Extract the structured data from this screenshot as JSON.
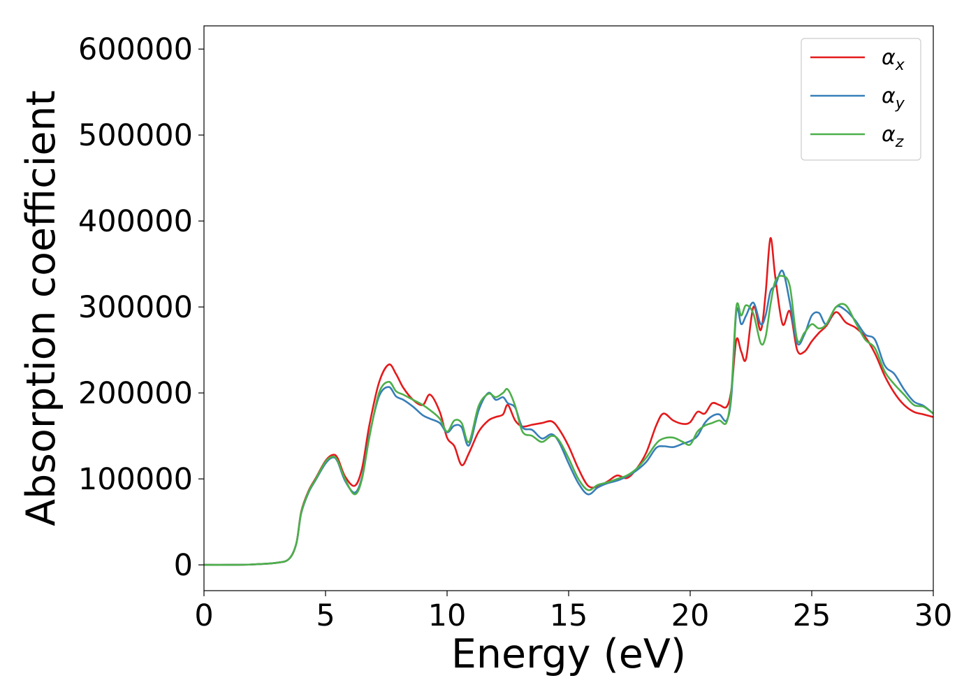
{
  "chart_data": {
    "type": "line",
    "title": "",
    "xlabel": "Energy (eV)",
    "ylabel": "Absorption coefficient",
    "xlim": [
      0,
      30
    ],
    "ylim": [
      -30000,
      627000
    ],
    "xticks": [
      0,
      5,
      10,
      15,
      20,
      25,
      30
    ],
    "yticks": [
      0,
      100000,
      200000,
      300000,
      400000,
      500000,
      600000
    ],
    "grid": false,
    "legend_position": "top-right",
    "series": [
      {
        "name": "α",
        "subscript": "x",
        "color": "#e41a1c",
        "x": [
          0,
          1,
          2,
          3,
          3.5,
          3.8,
          4.0,
          4.3,
          4.6,
          5.0,
          5.3,
          5.5,
          5.8,
          6.2,
          6.5,
          6.8,
          7.2,
          7.6,
          7.9,
          8.2,
          8.6,
          9.0,
          9.3,
          9.7,
          10.0,
          10.3,
          10.6,
          10.9,
          11.3,
          11.7,
          12.0,
          12.3,
          12.5,
          12.8,
          13.1,
          13.5,
          13.9,
          14.3,
          14.6,
          15.0,
          15.4,
          15.8,
          16.2,
          16.6,
          17.0,
          17.4,
          17.8,
          18.2,
          18.6,
          18.9,
          19.3,
          19.7,
          20.0,
          20.3,
          20.6,
          20.9,
          21.2,
          21.5,
          21.7,
          21.9,
          22.1,
          22.3,
          22.6,
          22.9,
          23.1,
          23.3,
          23.5,
          23.8,
          24.1,
          24.4,
          24.7,
          25.0,
          25.3,
          25.6,
          26.0,
          26.4,
          26.8,
          27.2,
          27.6,
          28.0,
          28.4,
          28.8,
          29.2,
          29.6,
          30.0
        ],
        "values": [
          0,
          0,
          500,
          2500,
          7000,
          25000,
          62000,
          86000,
          101000,
          121000,
          128000,
          124000,
          103000,
          92000,
          112000,
          162000,
          212000,
          233000,
          222000,
          206000,
          192000,
          186000,
          198000,
          178000,
          148000,
          138000,
          116000,
          130000,
          155000,
          168000,
          172000,
          175000,
          186000,
          168000,
          161000,
          163000,
          165000,
          167000,
          158000,
          138000,
          112000,
          92000,
          91000,
          97000,
          104000,
          101000,
          112000,
          131000,
          162000,
          176000,
          168000,
          164000,
          166000,
          178000,
          176000,
          188000,
          186000,
          184000,
          205000,
          262000,
          248000,
          240000,
          300000,
          273000,
          315000,
          380000,
          335000,
          280000,
          295000,
          250000,
          248000,
          260000,
          270000,
          278000,
          294000,
          282000,
          276000,
          265000,
          246000,
          220000,
          200000,
          186000,
          178000,
          175000,
          172000
        ]
      },
      {
        "name": "α",
        "subscript": "y",
        "color": "#377eb8",
        "x": [
          0,
          1,
          2,
          3,
          3.5,
          3.8,
          4.0,
          4.3,
          4.6,
          5.0,
          5.3,
          5.5,
          5.8,
          6.2,
          6.5,
          6.8,
          7.2,
          7.6,
          7.9,
          8.2,
          8.6,
          9.0,
          9.3,
          9.7,
          10.0,
          10.3,
          10.6,
          10.9,
          11.3,
          11.7,
          12.0,
          12.3,
          12.5,
          12.8,
          13.1,
          13.5,
          13.9,
          14.3,
          14.6,
          15.0,
          15.4,
          15.8,
          16.2,
          16.6,
          17.0,
          17.4,
          17.8,
          18.2,
          18.6,
          18.9,
          19.3,
          19.7,
          20.0,
          20.3,
          20.6,
          20.9,
          21.2,
          21.5,
          21.7,
          21.9,
          22.1,
          22.3,
          22.6,
          22.9,
          23.1,
          23.3,
          23.5,
          23.8,
          24.1,
          24.4,
          24.7,
          25.0,
          25.3,
          25.6,
          26.0,
          26.4,
          26.8,
          27.2,
          27.6,
          28.0,
          28.4,
          28.8,
          29.2,
          29.6,
          30.0
        ],
        "values": [
          0,
          0,
          500,
          2500,
          7000,
          25000,
          60000,
          84000,
          99000,
          118000,
          125000,
          120000,
          98000,
          84000,
          102000,
          150000,
          196000,
          207000,
          196000,
          192000,
          184000,
          174000,
          170000,
          165000,
          154000,
          162000,
          160000,
          139000,
          180000,
          200000,
          192000,
          195000,
          188000,
          183000,
          160000,
          157000,
          147000,
          152000,
          143000,
          118000,
          95000,
          82000,
          90000,
          95000,
          98000,
          103000,
          110000,
          120000,
          136000,
          138000,
          137000,
          141000,
          144000,
          150000,
          165000,
          173000,
          175000,
          168000,
          198000,
          295000,
          280000,
          290000,
          305000,
          280000,
          290000,
          318000,
          325000,
          342000,
          305000,
          258000,
          268000,
          290000,
          293000,
          280000,
          300000,
          296000,
          284000,
          268000,
          262000,
          232000,
          222000,
          204000,
          190000,
          185000,
          176000
        ]
      },
      {
        "name": "α",
        "subscript": "z",
        "color": "#4daf4a",
        "x": [
          0,
          1,
          2,
          3,
          3.5,
          3.8,
          4.0,
          4.3,
          4.6,
          5.0,
          5.3,
          5.5,
          5.8,
          6.2,
          6.5,
          6.8,
          7.2,
          7.6,
          7.9,
          8.2,
          8.6,
          9.0,
          9.3,
          9.7,
          10.0,
          10.3,
          10.6,
          10.9,
          11.3,
          11.7,
          12.0,
          12.3,
          12.5,
          12.8,
          13.1,
          13.5,
          13.9,
          14.3,
          14.6,
          15.0,
          15.4,
          15.8,
          16.2,
          16.6,
          17.0,
          17.4,
          17.8,
          18.2,
          18.6,
          18.9,
          19.3,
          19.7,
          20.0,
          20.3,
          20.6,
          20.9,
          21.2,
          21.5,
          21.7,
          21.9,
          22.1,
          22.3,
          22.6,
          22.9,
          23.1,
          23.3,
          23.5,
          23.8,
          24.1,
          24.4,
          24.7,
          25.0,
          25.3,
          25.6,
          26.0,
          26.4,
          26.8,
          27.2,
          27.6,
          28.0,
          28.4,
          28.8,
          29.2,
          29.6,
          30.0
        ],
        "values": [
          0,
          0,
          500,
          2500,
          7000,
          25000,
          61000,
          85000,
          100000,
          120000,
          126000,
          121000,
          100000,
          82000,
          100000,
          148000,
          200000,
          213000,
          202000,
          198000,
          192000,
          186000,
          180000,
          170000,
          155000,
          168000,
          165000,
          143000,
          185000,
          199000,
          195000,
          200000,
          204000,
          185000,
          155000,
          150000,
          143000,
          150000,
          145000,
          124000,
          100000,
          87000,
          93000,
          96000,
          100000,
          104000,
          112000,
          125000,
          141000,
          147000,
          148000,
          143000,
          140000,
          155000,
          162000,
          165000,
          168000,
          166000,
          205000,
          300000,
          290000,
          302000,
          292000,
          258000,
          265000,
          302000,
          330000,
          336000,
          324000,
          262000,
          270000,
          280000,
          275000,
          280000,
          300000,
          302000,
          282000,
          262000,
          252000,
          225000,
          210000,
          198000,
          186000,
          184000,
          176000
        ]
      }
    ]
  }
}
